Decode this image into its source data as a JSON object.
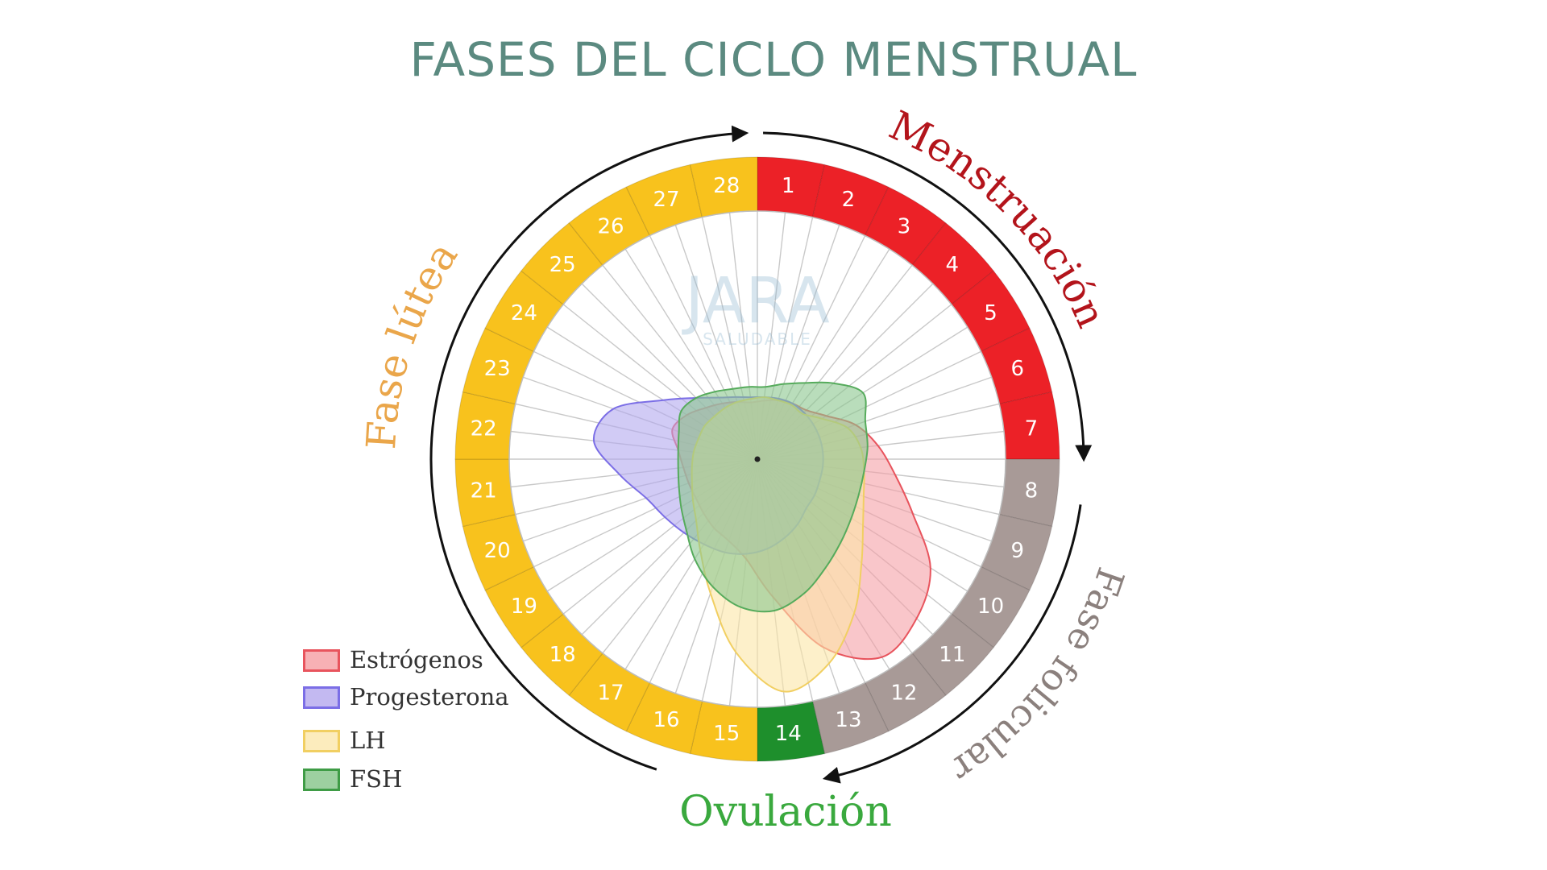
{
  "title": "FASES DEL CICLO MENSTRUAL",
  "watermark": {
    "main": "JARA",
    "sub": "SALUDABLE"
  },
  "days": [
    {
      "n": "1",
      "phase": "menstruacion"
    },
    {
      "n": "2",
      "phase": "menstruacion"
    },
    {
      "n": "3",
      "phase": "menstruacion"
    },
    {
      "n": "4",
      "phase": "menstruacion"
    },
    {
      "n": "5",
      "phase": "menstruacion"
    },
    {
      "n": "6",
      "phase": "menstruacion"
    },
    {
      "n": "7",
      "phase": "menstruacion"
    },
    {
      "n": "8",
      "phase": "folicular"
    },
    {
      "n": "9",
      "phase": "folicular"
    },
    {
      "n": "10",
      "phase": "folicular"
    },
    {
      "n": "11",
      "phase": "folicular"
    },
    {
      "n": "12",
      "phase": "folicular"
    },
    {
      "n": "13",
      "phase": "folicular"
    },
    {
      "n": "14",
      "phase": "ovulacion"
    },
    {
      "n": "15",
      "phase": "lutea"
    },
    {
      "n": "16",
      "phase": "lutea"
    },
    {
      "n": "17",
      "phase": "lutea"
    },
    {
      "n": "18",
      "phase": "lutea"
    },
    {
      "n": "19",
      "phase": "lutea"
    },
    {
      "n": "20",
      "phase": "lutea"
    },
    {
      "n": "21",
      "phase": "lutea"
    },
    {
      "n": "22",
      "phase": "lutea"
    },
    {
      "n": "23",
      "phase": "lutea"
    },
    {
      "n": "24",
      "phase": "lutea"
    },
    {
      "n": "25",
      "phase": "lutea"
    },
    {
      "n": "26",
      "phase": "lutea"
    },
    {
      "n": "27",
      "phase": "lutea"
    },
    {
      "n": "28",
      "phase": "lutea"
    }
  ],
  "phases": {
    "menstruacion": {
      "label": "Menstruación",
      "color": "#ec2127",
      "text_color": "#b3141b"
    },
    "folicular": {
      "label": "Fase folicular",
      "color": "#a89a97",
      "text_color": "#8b807d"
    },
    "ovulacion": {
      "label": "Ovulación",
      "color": "#1e8f2c",
      "text_color": "#3aa93e"
    },
    "lutea": {
      "label": "Fase lútea",
      "color": "#f8c21d",
      "text_color": "#eaa64a"
    }
  },
  "hormones": [
    {
      "name": "Estrógenos",
      "fill": "#f5a0a6",
      "stroke": "#e8545d",
      "levels": [
        0.34,
        0.36,
        0.38,
        0.4,
        0.47,
        0.6,
        0.7,
        0.8,
        0.95,
        1.18,
        1.3,
        1.35,
        1.15,
        0.8,
        0.58,
        0.5,
        0.47,
        0.44,
        0.42,
        0.42,
        0.43,
        0.46,
        0.52,
        0.48,
        0.42,
        0.38,
        0.35,
        0.33
      ]
    },
    {
      "name": "Progesterona",
      "fill": "#b3a8ee",
      "stroke": "#7b6ee6",
      "levels": [
        0.36,
        0.37,
        0.38,
        0.38,
        0.38,
        0.38,
        0.38,
        0.38,
        0.38,
        0.39,
        0.4,
        0.44,
        0.48,
        0.52,
        0.55,
        0.57,
        0.58,
        0.6,
        0.63,
        0.68,
        0.8,
        0.95,
        0.88,
        0.64,
        0.5,
        0.42,
        0.38,
        0.36
      ]
    },
    {
      "name": "LH",
      "fill": "#fbe6a6",
      "stroke": "#f1cf62",
      "levels": [
        0.36,
        0.36,
        0.37,
        0.37,
        0.44,
        0.55,
        0.6,
        0.62,
        0.65,
        0.72,
        0.85,
        1.05,
        1.25,
        1.35,
        1.12,
        0.82,
        0.62,
        0.5,
        0.44,
        0.4,
        0.38,
        0.37,
        0.36,
        0.36,
        0.35,
        0.35,
        0.35,
        0.35
      ]
    },
    {
      "name": "FSH",
      "fill": "#8ac78d",
      "stroke": "#56ab5c",
      "levels": [
        0.42,
        0.46,
        0.52,
        0.62,
        0.72,
        0.66,
        0.64,
        0.62,
        0.62,
        0.64,
        0.68,
        0.74,
        0.82,
        0.88,
        0.86,
        0.78,
        0.68,
        0.58,
        0.52,
        0.48,
        0.46,
        0.46,
        0.48,
        0.52,
        0.5,
        0.46,
        0.43,
        0.42
      ]
    }
  ]
}
